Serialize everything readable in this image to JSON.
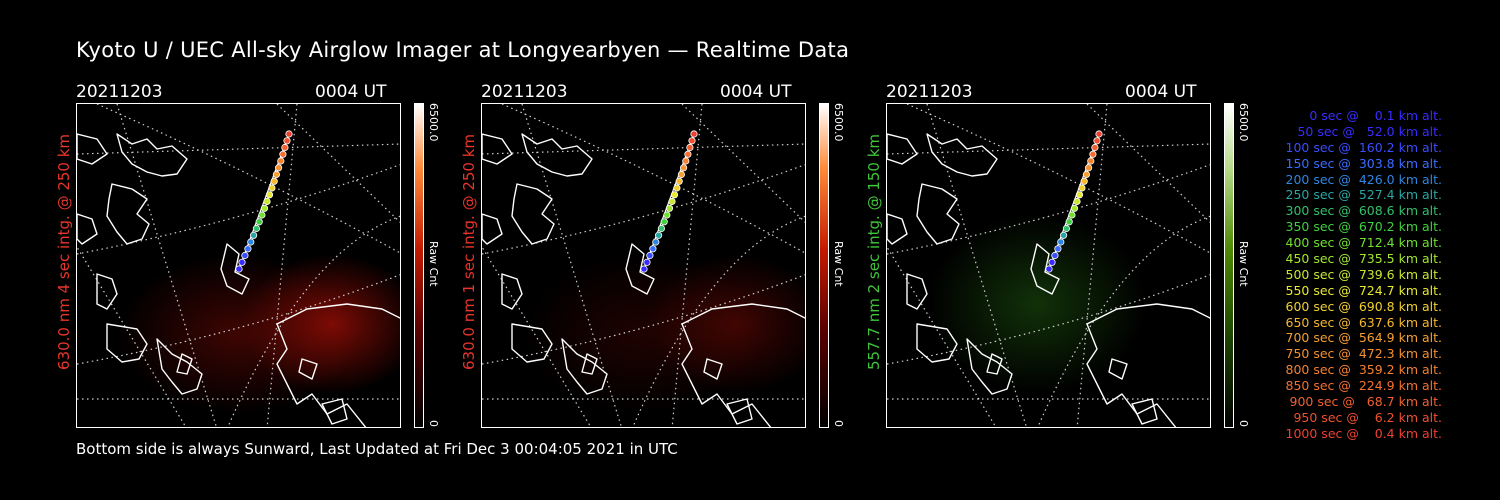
{
  "title": "Kyoto U / UEC All-sky Airglow Imager at Longyearbyen — Realtime Data",
  "footer": "Bottom side is always Sunward, Last Updated at Fri Dec  3 00:04:05 2021 in UTC",
  "panels": [
    {
      "date": "20211203",
      "time": "0004 UT",
      "label": "630.0 nm 4 sec intg. @ 250 km",
      "label_color": "#e8352a",
      "cbar_max": "6500.0",
      "cbar_unit": "Raw Cnt",
      "cbar_min": "0",
      "cbar_gradient": "linear-gradient(to top,#000 0%,#5a0000 30%,#c41a00 55%,#ff8a3a 80%,#fff 100%)"
    },
    {
      "date": "20211203",
      "time": "0004 UT",
      "label": "630.0 nm 1 sec intg. @ 250 km",
      "label_color": "#e8352a",
      "cbar_max": "6500.0",
      "cbar_unit": "Raw Cnt",
      "cbar_min": "0",
      "cbar_gradient": "linear-gradient(to top,#000 0%,#5a0000 30%,#c41a00 55%,#ff8a3a 80%,#fff 100%)"
    },
    {
      "date": "20211203",
      "time": "0004 UT",
      "label": "557.7 nm 2 sec intg. @ 150 km",
      "label_color": "#3fc43a",
      "cbar_max": "6500.0",
      "cbar_unit": "Raw Cnt",
      "cbar_min": "0",
      "cbar_gradient": "linear-gradient(to top,#000 0%,#1f4a00 30%,#4d8a00 55%,#b7d98a 80%,#fff 100%)"
    }
  ],
  "legend": [
    {
      "text": "   0 sec @    0.1 km alt.",
      "color": "#3a2cff"
    },
    {
      "text": "  50 sec @   52.0 km alt.",
      "color": "#3a2cff"
    },
    {
      "text": " 100 sec @  160.2 km alt.",
      "color": "#3a4cff"
    },
    {
      "text": " 150 sec @  303.8 km alt.",
      "color": "#3a6cff"
    },
    {
      "text": " 200 sec @  426.0 km alt.",
      "color": "#2f86e0"
    },
    {
      "text": " 250 sec @  527.4 km alt.",
      "color": "#2aa5a5"
    },
    {
      "text": " 300 sec @  608.6 km alt.",
      "color": "#33c06a"
    },
    {
      "text": " 350 sec @  670.2 km alt.",
      "color": "#40d040"
    },
    {
      "text": " 400 sec @  712.4 km alt.",
      "color": "#70e030"
    },
    {
      "text": " 450 sec @  735.5 km alt.",
      "color": "#a0e830"
    },
    {
      "text": " 500 sec @  739.6 km alt.",
      "color": "#c8e830"
    },
    {
      "text": " 550 sec @  724.7 km alt.",
      "color": "#e8e830"
    },
    {
      "text": " 600 sec @  690.8 km alt.",
      "color": "#f0d030"
    },
    {
      "text": " 650 sec @  637.6 km alt.",
      "color": "#f5b830"
    },
    {
      "text": " 700 sec @  564.9 km alt.",
      "color": "#f5a030"
    },
    {
      "text": " 750 sec @  472.3 km alt.",
      "color": "#f59030"
    },
    {
      "text": " 800 sec @  359.2 km alt.",
      "color": "#f58030"
    },
    {
      "text": " 850 sec @  224.9 km alt.",
      "color": "#f57030"
    },
    {
      "text": " 900 sec @   68.7 km alt.",
      "color": "#f06030"
    },
    {
      "text": " 950 sec @    6.2 km alt.",
      "color": "#ee5030"
    },
    {
      "text": "1000 sec @    0.4 km alt.",
      "color": "#ee4030"
    }
  ]
}
